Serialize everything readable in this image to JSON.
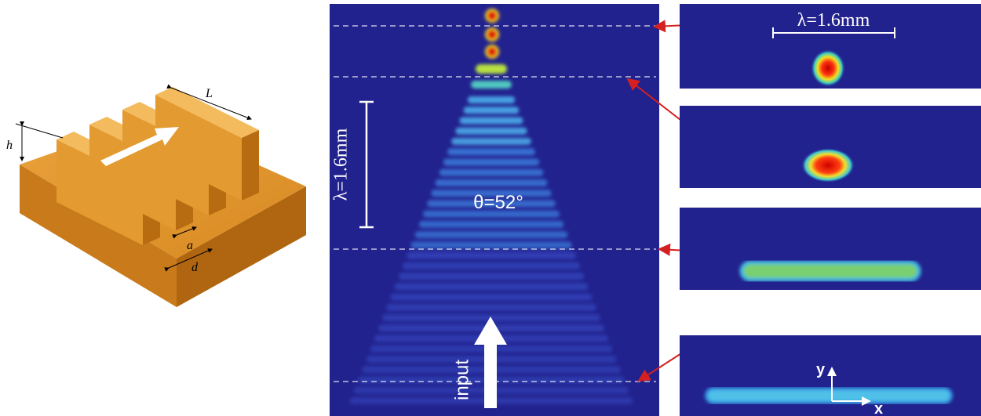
{
  "model": {
    "labels": {
      "h": "h",
      "L": "L",
      "a": "a",
      "d": "d"
    }
  },
  "field_map": {
    "scale_label": "λ=1.6mm",
    "angle_label": "θ=52°",
    "input_label": "input"
  },
  "cross_sections": {
    "scale_label": "λ=1.6mm",
    "axis_y": "y",
    "axis_x": "x"
  }
}
